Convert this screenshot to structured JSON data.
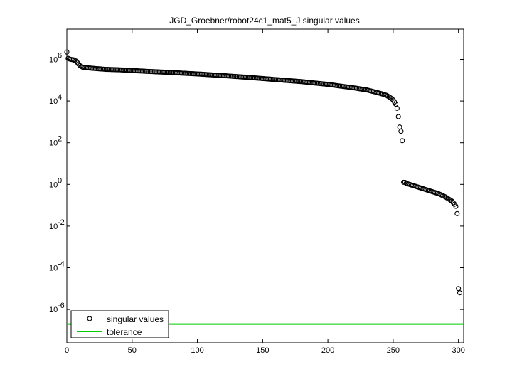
{
  "chart_data": {
    "type": "scatter",
    "title": "JGD_Groebner/robot24c1_mat5_J singular values",
    "xlabel": "",
    "ylabel": "",
    "xlim": [
      0,
      304
    ],
    "ylim_log10": [
      -7.6,
      7.45
    ],
    "y_scale": "log",
    "x_ticks": [
      0,
      50,
      100,
      150,
      200,
      250,
      300
    ],
    "y_tick_exponents": [
      -6,
      -4,
      -2,
      0,
      2,
      4,
      6
    ],
    "grid": false,
    "legend_position": "bottom-left",
    "series": [
      {
        "name": "singular values",
        "marker": "circle",
        "color": "#000000",
        "anchors_log10": [
          [
            0,
            6.35
          ],
          [
            1,
            6.05
          ],
          [
            2,
            6.02
          ],
          [
            3,
            6.0
          ],
          [
            5,
            5.98
          ],
          [
            7,
            5.92
          ],
          [
            8,
            5.85
          ],
          [
            10,
            5.7
          ],
          [
            12,
            5.63
          ],
          [
            15,
            5.6
          ],
          [
            20,
            5.57
          ],
          [
            30,
            5.52
          ],
          [
            40,
            5.5
          ],
          [
            60,
            5.43
          ],
          [
            80,
            5.37
          ],
          [
            100,
            5.3
          ],
          [
            120,
            5.22
          ],
          [
            140,
            5.13
          ],
          [
            160,
            5.03
          ],
          [
            180,
            4.93
          ],
          [
            200,
            4.8
          ],
          [
            220,
            4.63
          ],
          [
            230,
            4.53
          ],
          [
            240,
            4.37
          ],
          [
            245,
            4.27
          ],
          [
            248,
            4.15
          ],
          [
            250,
            4.05
          ],
          [
            251,
            3.95
          ],
          [
            252,
            3.85
          ],
          [
            253,
            3.65
          ],
          [
            254,
            3.25
          ],
          [
            255,
            2.75
          ],
          [
            256,
            2.55
          ],
          [
            257,
            2.1
          ],
          [
            258,
            0.1
          ],
          [
            259,
            0.1
          ],
          [
            260,
            0.05
          ],
          [
            265,
            -0.05
          ],
          [
            270,
            -0.15
          ],
          [
            275,
            -0.25
          ],
          [
            280,
            -0.35
          ],
          [
            285,
            -0.45
          ],
          [
            290,
            -0.6
          ],
          [
            295,
            -0.8
          ],
          [
            297,
            -0.95
          ],
          [
            298,
            -1.05
          ],
          [
            299,
            -1.4
          ],
          [
            300,
            -5.0
          ],
          [
            301,
            -5.2
          ]
        ]
      },
      {
        "name": "tolerance",
        "color": "#00cc00",
        "log10": -6.7
      }
    ]
  }
}
